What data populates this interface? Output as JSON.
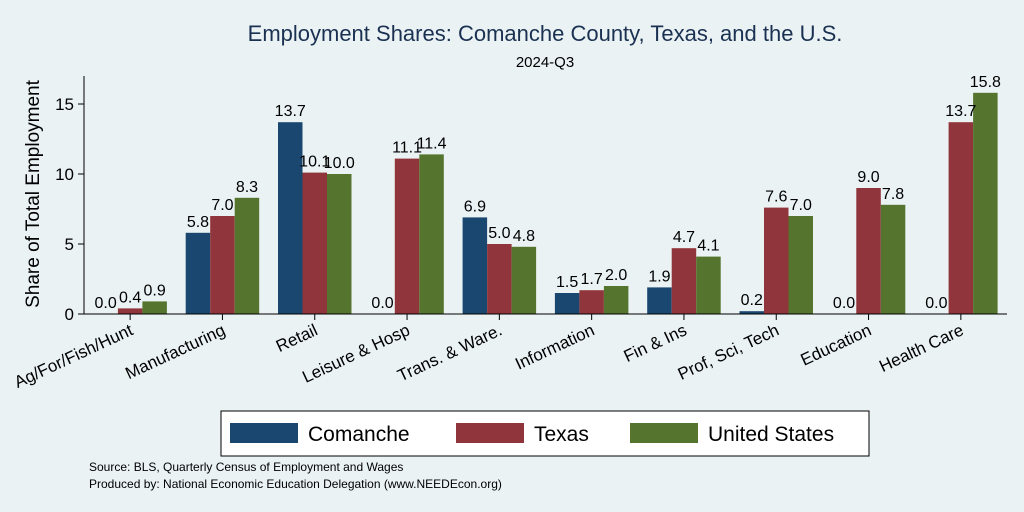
{
  "chart_data": {
    "type": "bar",
    "title": "Employment Shares: Comanche County, Texas, and the U.S.",
    "subtitle": "2024-Q3",
    "ylabel": "Share of Total Employment",
    "xlabel": "",
    "ylim": [
      0,
      17
    ],
    "yticks": [
      0,
      5,
      10,
      15
    ],
    "grid": false,
    "legend_position": "bottom",
    "categories": [
      "Ag/For/Fish/Hunt",
      "Manufacturing",
      "Retail",
      "Leisure & Hosp",
      "Trans. & Ware.",
      "Information",
      "Fin & Ins",
      "Prof, Sci, Tech",
      "Education",
      "Health Care"
    ],
    "series": [
      {
        "name": "Comanche",
        "color": "#1a476f",
        "values": [
          0.0,
          5.8,
          13.7,
          0.0,
          6.9,
          1.5,
          1.9,
          0.2,
          0.0,
          0.0
        ]
      },
      {
        "name": "Texas",
        "color": "#90353b",
        "values": [
          0.4,
          7.0,
          10.1,
          11.1,
          5.0,
          1.7,
          4.7,
          7.6,
          9.0,
          13.7
        ]
      },
      {
        "name": "United States",
        "color": "#55752f",
        "values": [
          0.9,
          8.3,
          10.0,
          11.4,
          4.8,
          2.0,
          4.1,
          7.0,
          7.8,
          15.8
        ]
      }
    ]
  },
  "notes": {
    "source": "Source: BLS, Quarterly Census of Employment and Wages",
    "produced": "Produced by: National Economic Education Delegation (www.NEEDEcon.org)"
  }
}
